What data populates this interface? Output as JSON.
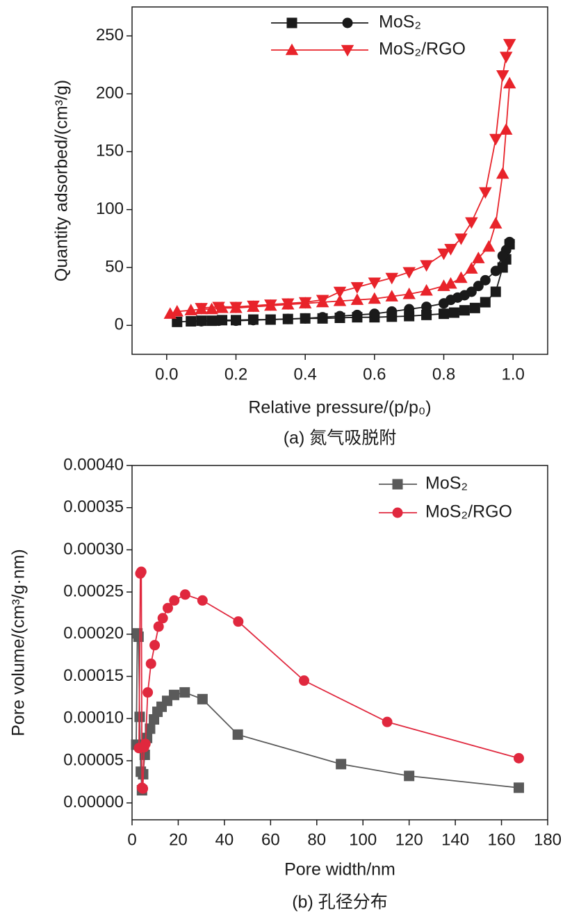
{
  "chart_data": [
    {
      "type": "line",
      "x_label": "Relative pressure/(p/p₀)",
      "y_label": "Quantity adsorbed/(cm³/g)",
      "caption": "(a) 氮气吸脱附",
      "xlim": [
        -0.1,
        1.1
      ],
      "ylim": [
        -25,
        275
      ],
      "xticks": [
        {
          "value": 0,
          "label": "0.0"
        },
        0.2,
        0.4,
        0.6,
        0.8,
        {
          "value": 1,
          "label": "1.0"
        }
      ],
      "yticks": [
        0,
        50,
        100,
        150,
        200,
        250
      ],
      "legend": "upper center",
      "series": [
        {
          "name": "MoS₂",
          "color": "#1a1a1a",
          "markers": [
            "square",
            "circle"
          ],
          "adsorption": {
            "x": [
              0.03,
              0.07,
              0.1,
              0.13,
              0.16,
              0.2,
              0.25,
              0.3,
              0.35,
              0.4,
              0.45,
              0.5,
              0.55,
              0.6,
              0.65,
              0.7,
              0.75,
              0.8,
              0.83,
              0.86,
              0.89,
              0.92,
              0.95,
              0.97,
              0.98,
              0.99
            ],
            "values": [
              3,
              3.5,
              4,
              4,
              4.5,
              4.5,
              5,
              5,
              5.5,
              6,
              6,
              6.5,
              7,
              7,
              7.5,
              8,
              9,
              10,
              11,
              13,
              15,
              20,
              29,
              50,
              57,
              70
            ]
          },
          "desorption": {
            "x": [
              0.99,
              0.98,
              0.97,
              0.95,
              0.92,
              0.9,
              0.88,
              0.86,
              0.84,
              0.82,
              0.8,
              0.75,
              0.7,
              0.65,
              0.6,
              0.55,
              0.5,
              0.45,
              0.4,
              0.35,
              0.3,
              0.25,
              0.2,
              0.15,
              0.1,
              0.07
            ],
            "values": [
              72,
              65,
              60,
              47,
              39,
              34,
              29,
              26,
              24,
              22,
              19,
              16,
              14,
              12,
              10,
              9,
              8,
              7,
              6,
              5.5,
              5,
              4.5,
              4,
              4,
              3.5,
              3.5
            ]
          }
        },
        {
          "name": "MoS₂/RGO",
          "color": "#e8232a",
          "markers": [
            "triangle-up",
            "triangle-down"
          ],
          "adsorption": {
            "x": [
              0.01,
              0.03,
              0.07,
              0.1,
              0.13,
              0.16,
              0.2,
              0.25,
              0.3,
              0.35,
              0.4,
              0.45,
              0.5,
              0.55,
              0.6,
              0.65,
              0.7,
              0.75,
              0.8,
              0.82,
              0.85,
              0.88,
              0.9,
              0.93,
              0.95,
              0.97,
              0.98,
              0.99
            ],
            "values": [
              10,
              12,
              13,
              14,
              14,
              15,
              15,
              16,
              17,
              18,
              19,
              20,
              21,
              22,
              23,
              25,
              27,
              30,
              34,
              36,
              41,
              49,
              58,
              68,
              88,
              131,
              169,
              209
            ]
          },
          "desorption": {
            "x": [
              0.99,
              0.98,
              0.97,
              0.95,
              0.92,
              0.88,
              0.85,
              0.82,
              0.8,
              0.75,
              0.7,
              0.65,
              0.6,
              0.55,
              0.5,
              0.45,
              0.4,
              0.35,
              0.3,
              0.25,
              0.2,
              0.15,
              0.1
            ],
            "values": [
              243,
              232,
              216,
              161,
              115,
              89,
              75,
              66,
              62,
              52,
              46,
              41,
              37,
              33,
              29,
              22,
              20,
              19,
              18,
              17,
              16,
              16,
              15
            ]
          }
        }
      ]
    },
    {
      "type": "line",
      "x_label": "Pore width/nm",
      "y_label": "Pore volume/(cm³/g·nm)",
      "caption": "(b) 孔径分布",
      "xlim": [
        0,
        180
      ],
      "ylim": [
        -2e-05,
        0.0004
      ],
      "xticks": [
        0,
        20,
        40,
        60,
        80,
        100,
        120,
        140,
        160,
        180
      ],
      "yticks": [
        {
          "value": 0,
          "label": "0.00000"
        },
        {
          "value": 5e-05,
          "label": "0.00005"
        },
        {
          "value": 0.0001,
          "label": "0.00010"
        },
        {
          "value": 0.00015,
          "label": "0.00015"
        },
        {
          "value": 0.0002,
          "label": "0.00020"
        },
        {
          "value": 0.00025,
          "label": "0.00025"
        },
        {
          "value": 0.0003,
          "label": "0.00030"
        },
        {
          "value": 0.00035,
          "label": "0.00035"
        },
        {
          "value": 0.0004,
          "label": "0.00040"
        }
      ],
      "legend": "upper right",
      "series": [
        {
          "name": "MoS₂",
          "color": "#5a5a5a",
          "marker": "square",
          "x": [
            1.8,
            2.3,
            2.8,
            3.3,
            3.8,
            4.3,
            4.8,
            5.5,
            6.5,
            7.8,
            9.5,
            11,
            12.8,
            15.2,
            18.2,
            22.8,
            30.5,
            45.8,
            90.5,
            120,
            167.5
          ],
          "values": [
            6.9e-05,
            0.000201,
            0.000197,
            0.000102,
            3.7e-05,
            1.5e-05,
            3.4e-05,
            5.7e-05,
            7.7e-05,
            8.8e-05,
            9.9e-05,
            0.000108,
            0.000114,
            0.000121,
            0.000128,
            0.000131,
            0.000123,
            8.1e-05,
            4.6e-05,
            3.2e-05,
            1.8e-05
          ]
        },
        {
          "name": "MoS₂/RGO",
          "color": "#e0283e",
          "marker": "circle",
          "x": [
            3.0,
            3.6,
            4.0,
            4.3,
            4.7,
            5.2,
            5.8,
            6.8,
            8.2,
            9.8,
            11.5,
            13.3,
            15.5,
            18.3,
            23,
            30.5,
            46,
            74.5,
            110.5,
            167.5
          ],
          "values": [
            6.5e-05,
            0.000272,
            0.000274,
            1.8e-05,
            1.7e-05,
            6.6e-05,
            7e-05,
            0.000131,
            0.000165,
            0.000187,
            0.000209,
            0.000219,
            0.000231,
            0.00024,
            0.000247,
            0.00024,
            0.000215,
            0.000145,
            9.6e-05,
            5.3e-05
          ]
        }
      ]
    }
  ]
}
